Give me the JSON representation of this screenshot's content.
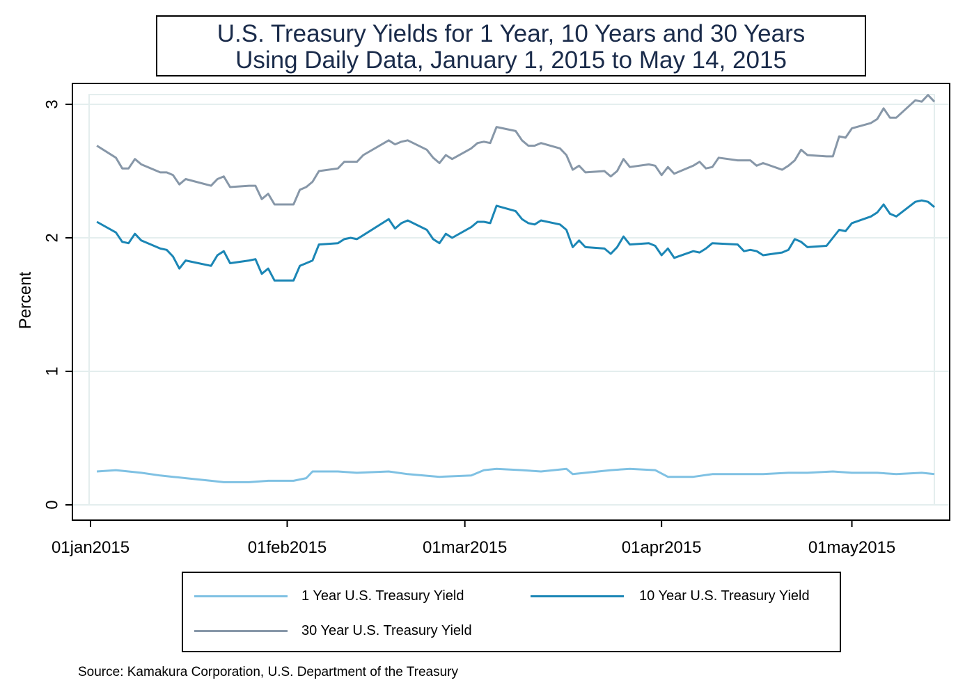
{
  "title": "U.S. Treasury Yields for 1 Year, 10 Years and 30 Years",
  "subtitle": "Using Daily Data, January 1, 2015 to May 14, 2015",
  "source": "Source: Kamakura Corporation, U.S. Department of the Treasury",
  "chart_data": {
    "type": "line",
    "title": "U.S. Treasury Yields for 1 Year, 10 Years and 30 Years",
    "subtitle": "Using Daily Data, January 1, 2015 to May 14, 2015",
    "xlabel": "",
    "ylabel": "Percent",
    "ylim": [
      0,
      3.05
    ],
    "xlim": [
      "2015-01-01",
      "2015-05-14"
    ],
    "yticks": [
      0,
      1,
      2,
      3
    ],
    "xticks": [
      {
        "date": "2015-01-01",
        "label": "01jan2015"
      },
      {
        "date": "2015-02-01",
        "label": "01feb2015"
      },
      {
        "date": "2015-03-01",
        "label": "01mar2015"
      },
      {
        "date": "2015-04-01",
        "label": "01apr2015"
      },
      {
        "date": "2015-05-01",
        "label": "01may2015"
      }
    ],
    "grid": true,
    "legend_position": "bottom",
    "series": [
      {
        "name": "1 Year U.S. Treasury Yield",
        "color": "#7fc1e3",
        "points": [
          [
            "2015-01-02",
            0.25
          ],
          [
            "2015-01-05",
            0.26
          ],
          [
            "2015-01-07",
            0.25
          ],
          [
            "2015-01-09",
            0.24
          ],
          [
            "2015-01-12",
            0.22
          ],
          [
            "2015-01-14",
            0.21
          ],
          [
            "2015-01-16",
            0.2
          ],
          [
            "2015-01-20",
            0.18
          ],
          [
            "2015-01-22",
            0.17
          ],
          [
            "2015-01-26",
            0.17
          ],
          [
            "2015-01-29",
            0.18
          ],
          [
            "2015-02-02",
            0.18
          ],
          [
            "2015-02-04",
            0.2
          ],
          [
            "2015-02-05",
            0.25
          ],
          [
            "2015-02-09",
            0.25
          ],
          [
            "2015-02-12",
            0.24
          ],
          [
            "2015-02-17",
            0.25
          ],
          [
            "2015-02-20",
            0.23
          ],
          [
            "2015-02-25",
            0.21
          ],
          [
            "2015-03-02",
            0.22
          ],
          [
            "2015-03-04",
            0.26
          ],
          [
            "2015-03-06",
            0.27
          ],
          [
            "2015-03-10",
            0.26
          ],
          [
            "2015-03-13",
            0.25
          ],
          [
            "2015-03-17",
            0.27
          ],
          [
            "2015-03-18",
            0.23
          ],
          [
            "2015-03-20",
            0.24
          ],
          [
            "2015-03-24",
            0.26
          ],
          [
            "2015-03-27",
            0.27
          ],
          [
            "2015-03-31",
            0.26
          ],
          [
            "2015-04-02",
            0.21
          ],
          [
            "2015-04-06",
            0.21
          ],
          [
            "2015-04-09",
            0.23
          ],
          [
            "2015-04-14",
            0.23
          ],
          [
            "2015-04-17",
            0.23
          ],
          [
            "2015-04-21",
            0.24
          ],
          [
            "2015-04-24",
            0.24
          ],
          [
            "2015-04-28",
            0.25
          ],
          [
            "2015-05-01",
            0.24
          ],
          [
            "2015-05-05",
            0.24
          ],
          [
            "2015-05-08",
            0.23
          ],
          [
            "2015-05-12",
            0.24
          ],
          [
            "2015-05-14",
            0.23
          ]
        ]
      },
      {
        "name": "10 Year U.S. Treasury Yield",
        "color": "#1b86b5",
        "points": [
          [
            "2015-01-02",
            2.12
          ],
          [
            "2015-01-05",
            2.04
          ],
          [
            "2015-01-06",
            1.97
          ],
          [
            "2015-01-07",
            1.96
          ],
          [
            "2015-01-08",
            2.03
          ],
          [
            "2015-01-09",
            1.98
          ],
          [
            "2015-01-12",
            1.92
          ],
          [
            "2015-01-13",
            1.91
          ],
          [
            "2015-01-14",
            1.86
          ],
          [
            "2015-01-15",
            1.77
          ],
          [
            "2015-01-16",
            1.83
          ],
          [
            "2015-01-20",
            1.79
          ],
          [
            "2015-01-21",
            1.87
          ],
          [
            "2015-01-22",
            1.9
          ],
          [
            "2015-01-23",
            1.81
          ],
          [
            "2015-01-26",
            1.83
          ],
          [
            "2015-01-27",
            1.84
          ],
          [
            "2015-01-28",
            1.73
          ],
          [
            "2015-01-29",
            1.77
          ],
          [
            "2015-01-30",
            1.68
          ],
          [
            "2015-02-02",
            1.68
          ],
          [
            "2015-02-03",
            1.79
          ],
          [
            "2015-02-04",
            1.81
          ],
          [
            "2015-02-05",
            1.83
          ],
          [
            "2015-02-06",
            1.95
          ],
          [
            "2015-02-09",
            1.96
          ],
          [
            "2015-02-10",
            1.99
          ],
          [
            "2015-02-11",
            2.0
          ],
          [
            "2015-02-12",
            1.99
          ],
          [
            "2015-02-13",
            2.02
          ],
          [
            "2015-02-17",
            2.14
          ],
          [
            "2015-02-18",
            2.07
          ],
          [
            "2015-02-19",
            2.11
          ],
          [
            "2015-02-20",
            2.13
          ],
          [
            "2015-02-23",
            2.06
          ],
          [
            "2015-02-24",
            1.99
          ],
          [
            "2015-02-25",
            1.96
          ],
          [
            "2015-02-26",
            2.03
          ],
          [
            "2015-02-27",
            2.0
          ],
          [
            "2015-03-02",
            2.08
          ],
          [
            "2015-03-03",
            2.12
          ],
          [
            "2015-03-04",
            2.12
          ],
          [
            "2015-03-05",
            2.11
          ],
          [
            "2015-03-06",
            2.24
          ],
          [
            "2015-03-09",
            2.2
          ],
          [
            "2015-03-10",
            2.14
          ],
          [
            "2015-03-11",
            2.11
          ],
          [
            "2015-03-12",
            2.1
          ],
          [
            "2015-03-13",
            2.13
          ],
          [
            "2015-03-16",
            2.1
          ],
          [
            "2015-03-17",
            2.06
          ],
          [
            "2015-03-18",
            1.93
          ],
          [
            "2015-03-19",
            1.98
          ],
          [
            "2015-03-20",
            1.93
          ],
          [
            "2015-03-23",
            1.92
          ],
          [
            "2015-03-24",
            1.88
          ],
          [
            "2015-03-25",
            1.93
          ],
          [
            "2015-03-26",
            2.01
          ],
          [
            "2015-03-27",
            1.95
          ],
          [
            "2015-03-30",
            1.96
          ],
          [
            "2015-03-31",
            1.94
          ],
          [
            "2015-04-01",
            1.87
          ],
          [
            "2015-04-02",
            1.92
          ],
          [
            "2015-04-03",
            1.85
          ],
          [
            "2015-04-06",
            1.9
          ],
          [
            "2015-04-07",
            1.89
          ],
          [
            "2015-04-08",
            1.92
          ],
          [
            "2015-04-09",
            1.96
          ],
          [
            "2015-04-13",
            1.95
          ],
          [
            "2015-04-14",
            1.9
          ],
          [
            "2015-04-15",
            1.91
          ],
          [
            "2015-04-16",
            1.9
          ],
          [
            "2015-04-17",
            1.87
          ],
          [
            "2015-04-20",
            1.89
          ],
          [
            "2015-04-21",
            1.91
          ],
          [
            "2015-04-22",
            1.99
          ],
          [
            "2015-04-23",
            1.97
          ],
          [
            "2015-04-24",
            1.93
          ],
          [
            "2015-04-27",
            1.94
          ],
          [
            "2015-04-28",
            2.0
          ],
          [
            "2015-04-29",
            2.06
          ],
          [
            "2015-04-30",
            2.05
          ],
          [
            "2015-05-01",
            2.11
          ],
          [
            "2015-05-04",
            2.16
          ],
          [
            "2015-05-05",
            2.19
          ],
          [
            "2015-05-06",
            2.25
          ],
          [
            "2015-05-07",
            2.18
          ],
          [
            "2015-05-08",
            2.16
          ],
          [
            "2015-05-11",
            2.27
          ],
          [
            "2015-05-12",
            2.28
          ],
          [
            "2015-05-13",
            2.27
          ],
          [
            "2015-05-14",
            2.23
          ]
        ]
      },
      {
        "name": "30 Year U.S. Treasury Yield",
        "color": "#8797a8",
        "points": [
          [
            "2015-01-02",
            2.69
          ],
          [
            "2015-01-05",
            2.6
          ],
          [
            "2015-01-06",
            2.52
          ],
          [
            "2015-01-07",
            2.52
          ],
          [
            "2015-01-08",
            2.59
          ],
          [
            "2015-01-09",
            2.55
          ],
          [
            "2015-01-12",
            2.49
          ],
          [
            "2015-01-13",
            2.49
          ],
          [
            "2015-01-14",
            2.47
          ],
          [
            "2015-01-15",
            2.4
          ],
          [
            "2015-01-16",
            2.44
          ],
          [
            "2015-01-20",
            2.39
          ],
          [
            "2015-01-21",
            2.44
          ],
          [
            "2015-01-22",
            2.46
          ],
          [
            "2015-01-23",
            2.38
          ],
          [
            "2015-01-26",
            2.39
          ],
          [
            "2015-01-27",
            2.39
          ],
          [
            "2015-01-28",
            2.29
          ],
          [
            "2015-01-29",
            2.33
          ],
          [
            "2015-01-30",
            2.25
          ],
          [
            "2015-02-02",
            2.25
          ],
          [
            "2015-02-03",
            2.36
          ],
          [
            "2015-02-04",
            2.38
          ],
          [
            "2015-02-05",
            2.42
          ],
          [
            "2015-02-06",
            2.5
          ],
          [
            "2015-02-09",
            2.52
          ],
          [
            "2015-02-10",
            2.57
          ],
          [
            "2015-02-11",
            2.57
          ],
          [
            "2015-02-12",
            2.57
          ],
          [
            "2015-02-13",
            2.62
          ],
          [
            "2015-02-17",
            2.73
          ],
          [
            "2015-02-18",
            2.7
          ],
          [
            "2015-02-19",
            2.72
          ],
          [
            "2015-02-20",
            2.73
          ],
          [
            "2015-02-23",
            2.66
          ],
          [
            "2015-02-24",
            2.6
          ],
          [
            "2015-02-25",
            2.56
          ],
          [
            "2015-02-26",
            2.62
          ],
          [
            "2015-02-27",
            2.59
          ],
          [
            "2015-03-02",
            2.67
          ],
          [
            "2015-03-03",
            2.71
          ],
          [
            "2015-03-04",
            2.72
          ],
          [
            "2015-03-05",
            2.71
          ],
          [
            "2015-03-06",
            2.83
          ],
          [
            "2015-03-09",
            2.8
          ],
          [
            "2015-03-10",
            2.73
          ],
          [
            "2015-03-11",
            2.69
          ],
          [
            "2015-03-12",
            2.69
          ],
          [
            "2015-03-13",
            2.71
          ],
          [
            "2015-03-16",
            2.67
          ],
          [
            "2015-03-17",
            2.62
          ],
          [
            "2015-03-18",
            2.51
          ],
          [
            "2015-03-19",
            2.54
          ],
          [
            "2015-03-20",
            2.49
          ],
          [
            "2015-03-23",
            2.5
          ],
          [
            "2015-03-24",
            2.46
          ],
          [
            "2015-03-25",
            2.5
          ],
          [
            "2015-03-26",
            2.59
          ],
          [
            "2015-03-27",
            2.53
          ],
          [
            "2015-03-30",
            2.55
          ],
          [
            "2015-03-31",
            2.54
          ],
          [
            "2015-04-01",
            2.47
          ],
          [
            "2015-04-02",
            2.53
          ],
          [
            "2015-04-03",
            2.48
          ],
          [
            "2015-04-06",
            2.54
          ],
          [
            "2015-04-07",
            2.57
          ],
          [
            "2015-04-08",
            2.52
          ],
          [
            "2015-04-09",
            2.53
          ],
          [
            "2015-04-10",
            2.6
          ],
          [
            "2015-04-13",
            2.58
          ],
          [
            "2015-04-14",
            2.58
          ],
          [
            "2015-04-15",
            2.58
          ],
          [
            "2015-04-16",
            2.54
          ],
          [
            "2015-04-17",
            2.56
          ],
          [
            "2015-04-20",
            2.51
          ],
          [
            "2015-04-21",
            2.54
          ],
          [
            "2015-04-22",
            2.58
          ],
          [
            "2015-04-23",
            2.66
          ],
          [
            "2015-04-24",
            2.62
          ],
          [
            "2015-04-27",
            2.61
          ],
          [
            "2015-04-28",
            2.61
          ],
          [
            "2015-04-29",
            2.76
          ],
          [
            "2015-04-30",
            2.75
          ],
          [
            "2015-05-01",
            2.82
          ],
          [
            "2015-05-04",
            2.86
          ],
          [
            "2015-05-05",
            2.89
          ],
          [
            "2015-05-06",
            2.97
          ],
          [
            "2015-05-07",
            2.9
          ],
          [
            "2015-05-08",
            2.9
          ],
          [
            "2015-05-11",
            3.03
          ],
          [
            "2015-05-12",
            3.02
          ],
          [
            "2015-05-13",
            3.07
          ],
          [
            "2015-05-14",
            3.02
          ]
        ]
      }
    ]
  }
}
